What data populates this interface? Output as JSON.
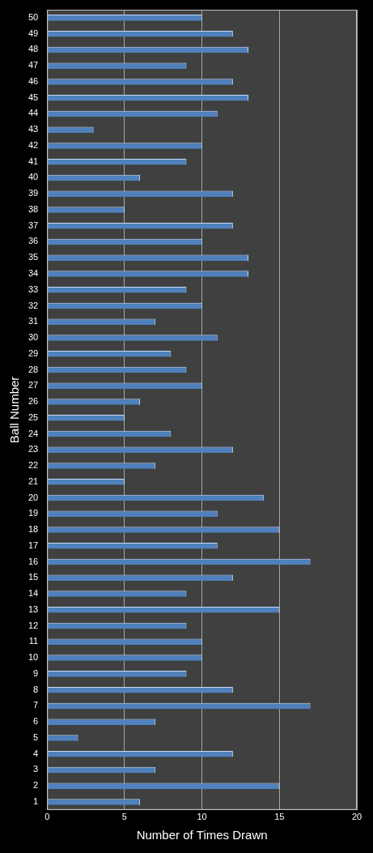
{
  "chart_data": {
    "type": "bar",
    "orientation": "horizontal",
    "x_label": "Number of Times Drawn",
    "y_label": "Ball Number",
    "categories": [
      "1",
      "2",
      "3",
      "4",
      "5",
      "6",
      "7",
      "8",
      "9",
      "10",
      "11",
      "12",
      "13",
      "14",
      "15",
      "16",
      "17",
      "18",
      "19",
      "20",
      "21",
      "22",
      "23",
      "24",
      "25",
      "26",
      "27",
      "28",
      "29",
      "30",
      "31",
      "32",
      "33",
      "34",
      "35",
      "36",
      "37",
      "38",
      "39",
      "40",
      "41",
      "42",
      "43",
      "44",
      "45",
      "46",
      "47",
      "48",
      "49",
      "50"
    ],
    "values": [
      6,
      15,
      7,
      12,
      2,
      7,
      17,
      12,
      9,
      10,
      10,
      9,
      15,
      9,
      12,
      17,
      11,
      15,
      11,
      14,
      5,
      7,
      12,
      8,
      5,
      6,
      10,
      9,
      8,
      11,
      7,
      10,
      9,
      13,
      13,
      10,
      12,
      5,
      12,
      6,
      9,
      10,
      3,
      11,
      13,
      12,
      9,
      13,
      12,
      10
    ],
    "color": "#4f81bd",
    "xlim": [
      0,
      20
    ],
    "xticks": [
      0,
      5,
      10,
      15,
      20
    ],
    "grid": true
  }
}
